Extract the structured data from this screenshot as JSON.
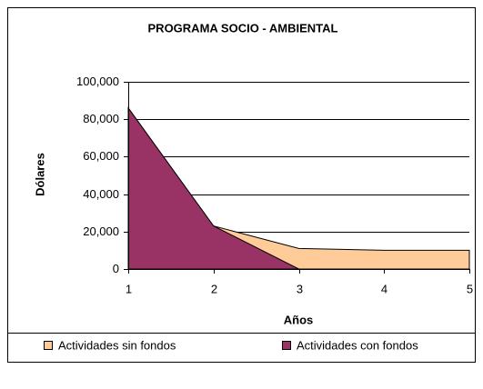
{
  "chart_data": {
    "type": "area",
    "title": "PROGRAMA SOCIO - AMBIENTAL",
    "x_label": "Años",
    "y_label": "Dólares",
    "x": [
      1,
      2,
      3,
      4,
      5
    ],
    "xlim": [
      1,
      5
    ],
    "xticks": [
      1,
      2,
      3,
      4,
      5
    ],
    "ylim": [
      0,
      100000
    ],
    "yticks": [
      0,
      {
        "value": 20000,
        "label": "20,000"
      },
      {
        "value": 40000,
        "label": "40,000"
      },
      {
        "value": 60000,
        "label": "60,000"
      },
      {
        "value": 80000,
        "label": "80,000"
      },
      {
        "value": 100000,
        "label": "100,000"
      }
    ],
    "grid": true,
    "legend": "bottom",
    "series": [
      {
        "name": "Actividades sin fondos",
        "color": "#ffcc99",
        "values": [
          86000,
          23000,
          11000,
          10000,
          10000
        ]
      },
      {
        "name": "Actividades con fondos",
        "color": "#993366",
        "values": [
          86000,
          23000,
          0,
          0,
          0
        ]
      }
    ]
  }
}
